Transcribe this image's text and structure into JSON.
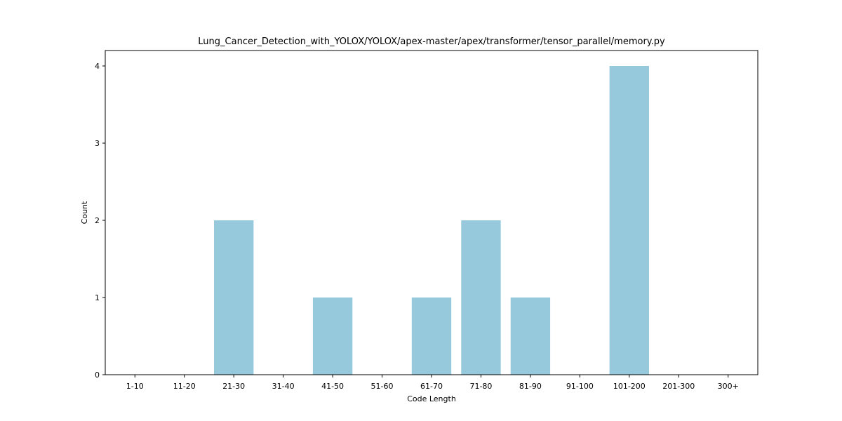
{
  "chart_data": {
    "type": "bar",
    "title": "Lung_Cancer_Detection_with_YOLOX/YOLOX/apex-master/apex/transformer/tensor_parallel/memory.py",
    "xlabel": "Code Length",
    "ylabel": "Count",
    "categories": [
      "1-10",
      "11-20",
      "21-30",
      "31-40",
      "41-50",
      "51-60",
      "61-70",
      "71-80",
      "81-90",
      "91-100",
      "101-200",
      "201-300",
      "300+"
    ],
    "values": [
      0,
      0,
      2,
      0,
      1,
      0,
      1,
      2,
      1,
      0,
      4,
      0,
      0
    ],
    "ylim": [
      0,
      4.2
    ],
    "yticks": [
      0,
      1,
      2,
      3,
      4
    ],
    "grid": false,
    "colors": {
      "bar": "#96c9dc",
      "axis": "#000000"
    }
  }
}
